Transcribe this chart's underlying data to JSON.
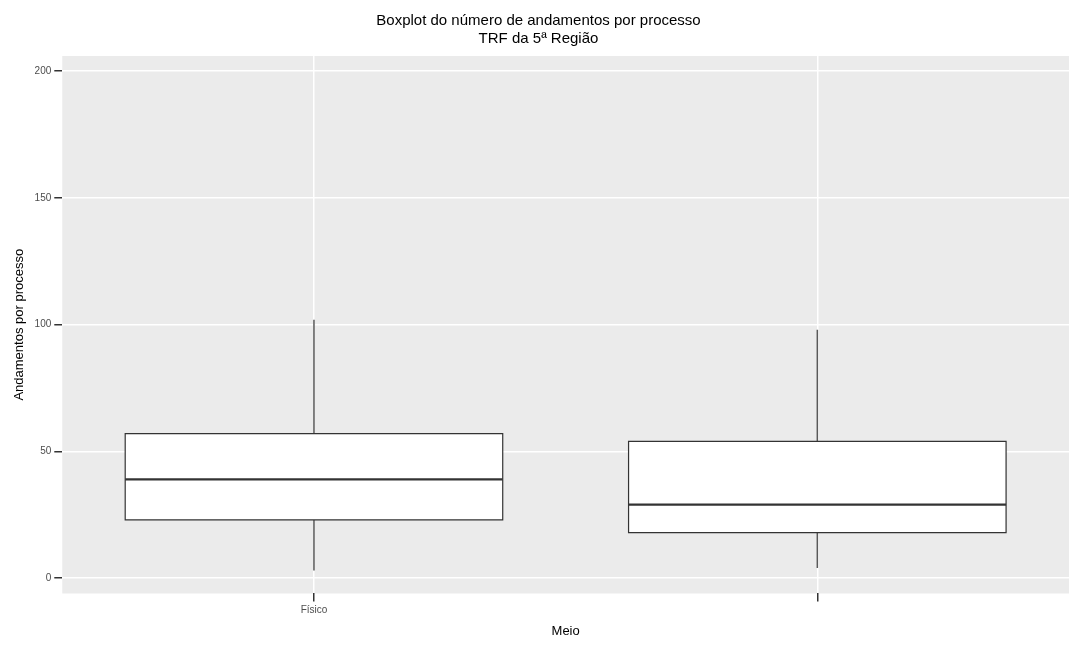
{
  "chart_data": {
    "type": "box",
    "title": "Boxplot do número de andamentos por processo\nTRF da 5ª Região",
    "xlabel": "Meio",
    "ylabel": "Andamentos por processo",
    "categories": [
      "Físico",
      null
    ],
    "boxes": [
      {
        "low": 3,
        "q1": 23,
        "median": 39,
        "q3": 57,
        "high": 102
      },
      {
        "low": 4,
        "q1": 18,
        "median": 29,
        "q3": 54,
        "high": 98
      }
    ],
    "ylim": [
      -6,
      206
    ],
    "yticks": [
      0,
      50,
      100,
      150,
      200
    ],
    "grid": true,
    "legend": false
  }
}
